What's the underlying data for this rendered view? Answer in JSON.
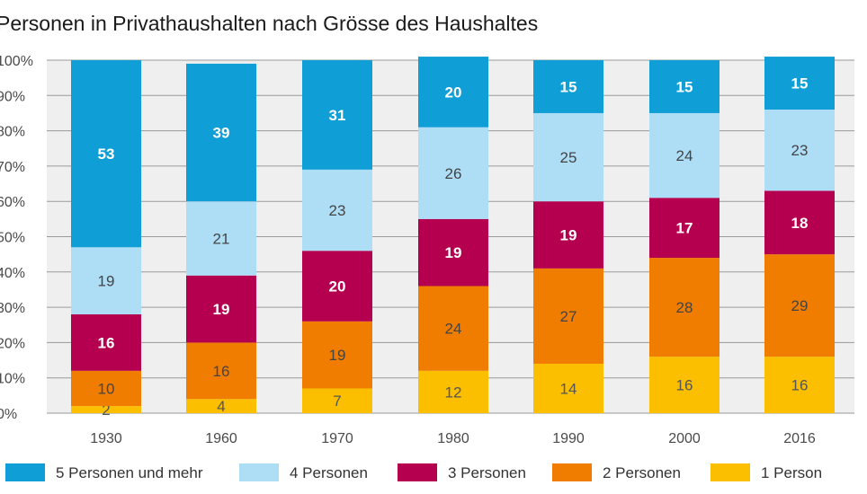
{
  "chart_data": {
    "type": "bar",
    "stacked": true,
    "title": "Personen in Privathaushalten nach Grösse des Haushaltes",
    "xlabel": "",
    "ylabel": "",
    "ylim": [
      0,
      100
    ],
    "ytick_labels": [
      "0%",
      "10%",
      "20%",
      "30%",
      "40%",
      "50%",
      "60%",
      "70%",
      "80%",
      "90%",
      "100%"
    ],
    "categories": [
      "1930",
      "1960",
      "1970",
      "1980",
      "1990",
      "2000",
      "2016"
    ],
    "series": [
      {
        "name": "1 Person",
        "color": "#fbbf00",
        "label_color": "#555555",
        "bold": false,
        "values": [
          2,
          4,
          7,
          12,
          14,
          16,
          16
        ]
      },
      {
        "name": "2 Personen",
        "color": "#f07d00",
        "label_color": "#444444",
        "bold": false,
        "values": [
          10,
          16,
          19,
          24,
          27,
          28,
          29
        ]
      },
      {
        "name": "3 Personen",
        "color": "#b4004e",
        "label_color": "#ffffff",
        "bold": true,
        "values": [
          16,
          19,
          20,
          19,
          19,
          17,
          18
        ]
      },
      {
        "name": "4 Personen",
        "color": "#aeddf6",
        "label_color": "#444444",
        "bold": false,
        "values": [
          19,
          21,
          23,
          26,
          25,
          24,
          23
        ]
      },
      {
        "name": "5 Personen und mehr",
        "color": "#0f9ed5",
        "label_color": "#ffffff",
        "bold": true,
        "values": [
          53,
          39,
          31,
          20,
          15,
          15,
          15
        ]
      }
    ],
    "legend_order": [
      "5 Personen und mehr",
      "4 Personen",
      "3 Personen",
      "2 Personen",
      "1 Person"
    ],
    "legend": "bottom",
    "grid": true
  }
}
